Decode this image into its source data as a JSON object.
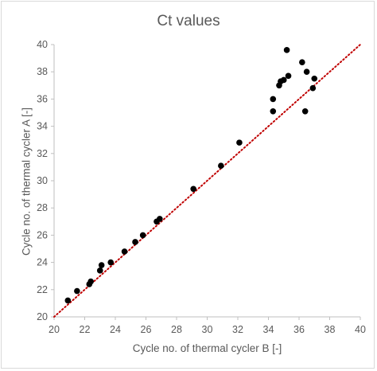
{
  "chart_data": {
    "type": "scatter",
    "title": "Ct values",
    "xlabel": "Cycle no. of thermal cycler B [-]",
    "ylabel": "Cycle no. of thermal cycler A [-]",
    "xlim": [
      20,
      40
    ],
    "ylim": [
      20,
      40
    ],
    "x_ticks": [
      "20",
      "22",
      "24",
      "26",
      "28",
      "30",
      "32",
      "34",
      "36",
      "38",
      "40"
    ],
    "y_ticks": [
      "20",
      "22",
      "24",
      "26",
      "28",
      "30",
      "32",
      "34",
      "36",
      "38",
      "40"
    ],
    "grid": false,
    "legend": "none",
    "series": [
      {
        "points": [
          [
            20.9,
            21.2
          ],
          [
            21.5,
            21.9
          ],
          [
            22.3,
            22.4
          ],
          [
            22.4,
            22.6
          ],
          [
            23.0,
            23.4
          ],
          [
            23.1,
            23.8
          ],
          [
            23.7,
            24.0
          ],
          [
            24.6,
            24.8
          ],
          [
            25.3,
            25.5
          ],
          [
            25.8,
            26.0
          ],
          [
            26.7,
            27.0
          ],
          [
            26.9,
            27.2
          ],
          [
            29.1,
            29.4
          ],
          [
            30.9,
            31.1
          ],
          [
            32.1,
            32.8
          ],
          [
            34.3,
            35.1
          ],
          [
            34.3,
            36.0
          ],
          [
            34.7,
            37.0
          ],
          [
            34.8,
            37.3
          ],
          [
            35.0,
            37.4
          ],
          [
            35.2,
            39.6
          ],
          [
            35.3,
            37.7
          ],
          [
            36.2,
            38.7
          ],
          [
            36.4,
            35.1
          ],
          [
            36.5,
            38.0
          ],
          [
            36.9,
            36.8
          ],
          [
            37.0,
            37.5
          ]
        ],
        "marker_color": "#000000"
      }
    ],
    "reference_line": {
      "from": [
        20,
        20
      ],
      "to": [
        40,
        40
      ],
      "style": "dotted",
      "color": "#c00000"
    }
  }
}
